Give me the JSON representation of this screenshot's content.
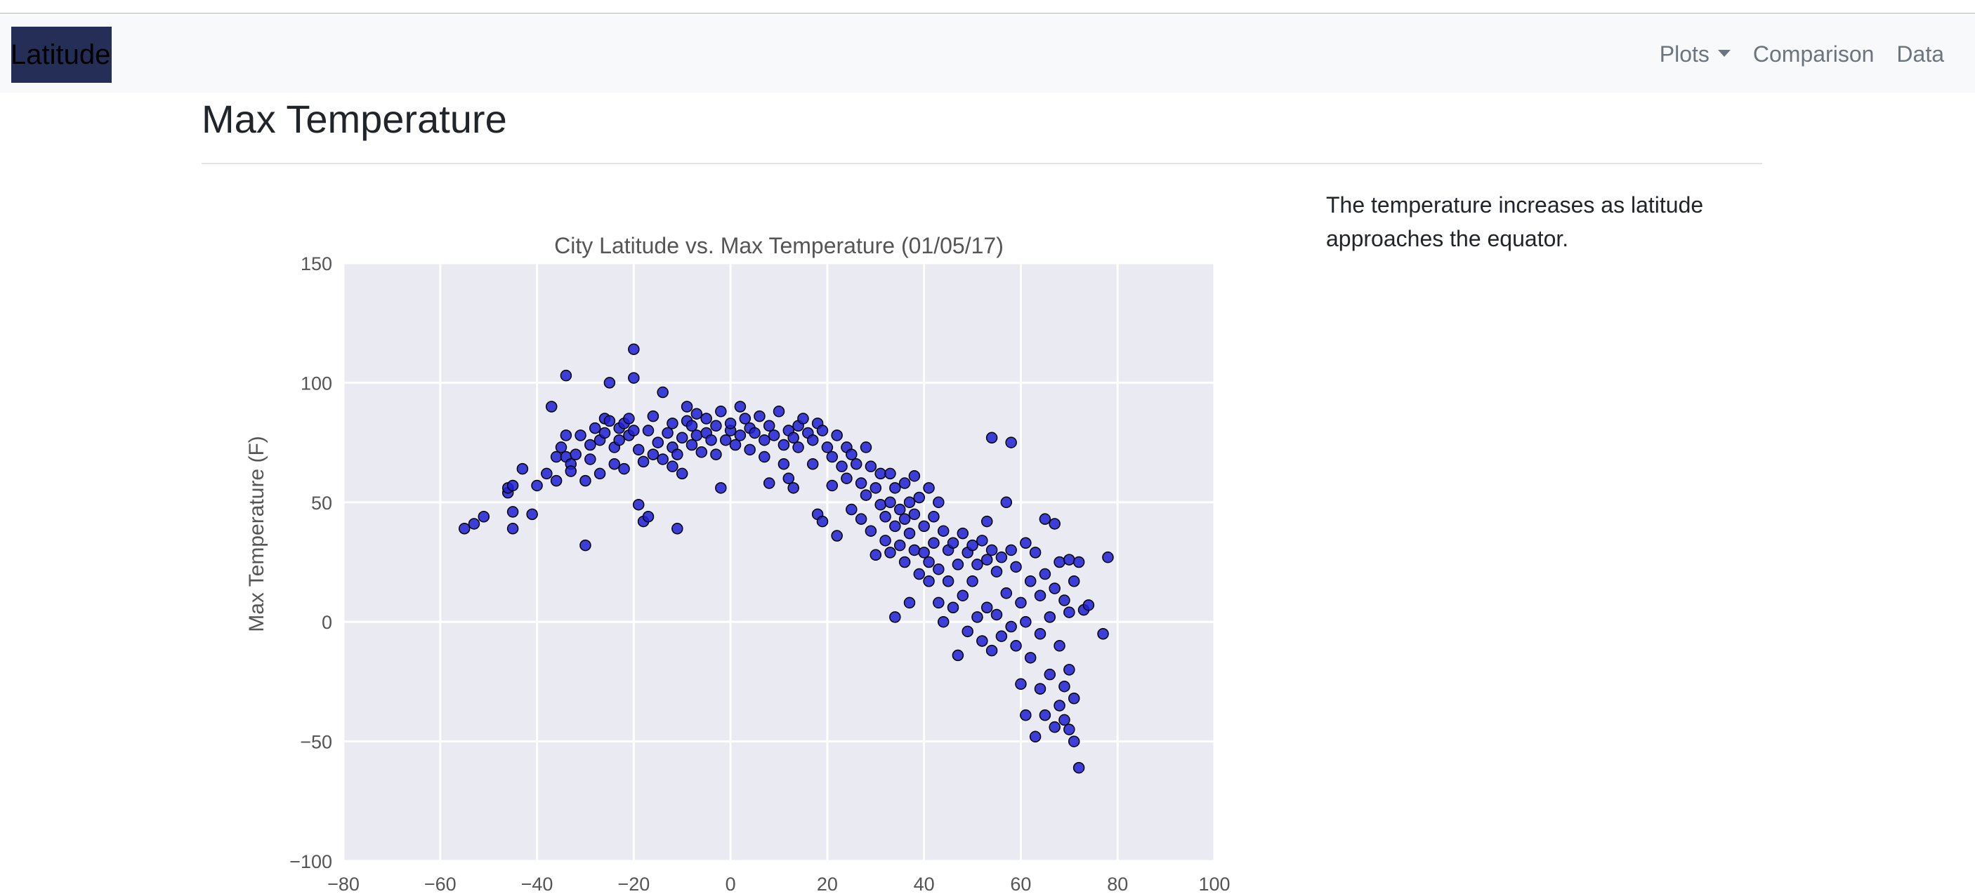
{
  "navbar": {
    "brand": "Latitude",
    "links": [
      {
        "label": "Plots",
        "dropdown": true
      },
      {
        "label": "Comparison",
        "dropdown": false
      },
      {
        "label": "Data",
        "dropdown": false
      }
    ]
  },
  "page": {
    "title": "Max Temperature",
    "description": "The temperature increases as latitude approaches the equator."
  },
  "colors": {
    "point_fill": "#1f1fd6",
    "plot_background": "#eaeaf2",
    "grid": "#ffffff",
    "brand_background": "#252e57"
  },
  "chart_data": {
    "type": "scatter",
    "title": "City Latitude vs. Max Temperature (01/05/17)",
    "xlabel": "",
    "ylabel": "Max Temperature (F)",
    "xlim": [
      -80,
      100
    ],
    "ylim": [
      -100,
      150
    ],
    "xticks": [
      -80,
      -60,
      -40,
      -20,
      0,
      20,
      40,
      60,
      80,
      100
    ],
    "yticks": [
      -100,
      -50,
      0,
      50,
      100,
      150
    ],
    "grid": true,
    "legend": "none",
    "points": [
      [
        -55,
        39
      ],
      [
        -53,
        41
      ],
      [
        -51,
        44
      ],
      [
        -46,
        54
      ],
      [
        -46,
        56
      ],
      [
        -45,
        57
      ],
      [
        -45,
        46
      ],
      [
        -45,
        39
      ],
      [
        -43,
        64
      ],
      [
        -41,
        45
      ],
      [
        -40,
        57
      ],
      [
        -38,
        62
      ],
      [
        -37,
        90
      ],
      [
        -36,
        69
      ],
      [
        -36,
        59
      ],
      [
        -35,
        73
      ],
      [
        -34,
        78
      ],
      [
        -34,
        103
      ],
      [
        -34,
        69
      ],
      [
        -33,
        66
      ],
      [
        -33,
        63
      ],
      [
        -32,
        70
      ],
      [
        -31,
        78
      ],
      [
        -30,
        32
      ],
      [
        -30,
        59
      ],
      [
        -29,
        74
      ],
      [
        -29,
        68
      ],
      [
        -28,
        81
      ],
      [
        -27,
        76
      ],
      [
        -27,
        62
      ],
      [
        -26,
        79
      ],
      [
        -26,
        85
      ],
      [
        -25,
        84
      ],
      [
        -25,
        100
      ],
      [
        -24,
        73
      ],
      [
        -24,
        66
      ],
      [
        -23,
        81
      ],
      [
        -23,
        76
      ],
      [
        -22,
        83
      ],
      [
        -22,
        64
      ],
      [
        -21,
        78
      ],
      [
        -21,
        85
      ],
      [
        -20,
        114
      ],
      [
        -20,
        102
      ],
      [
        -20,
        80
      ],
      [
        -19,
        72
      ],
      [
        -19,
        49
      ],
      [
        -18,
        42
      ],
      [
        -18,
        67
      ],
      [
        -17,
        44
      ],
      [
        -17,
        80
      ],
      [
        -16,
        86
      ],
      [
        -16,
        70
      ],
      [
        -15,
        75
      ],
      [
        -14,
        96
      ],
      [
        -14,
        68
      ],
      [
        -13,
        79
      ],
      [
        -12,
        83
      ],
      [
        -12,
        73
      ],
      [
        -12,
        65
      ],
      [
        -11,
        39
      ],
      [
        -11,
        70
      ],
      [
        -10,
        77
      ],
      [
        -10,
        62
      ],
      [
        -9,
        84
      ],
      [
        -9,
        90
      ],
      [
        -8,
        74
      ],
      [
        -8,
        82
      ],
      [
        -7,
        87
      ],
      [
        -7,
        78
      ],
      [
        -6,
        71
      ],
      [
        -5,
        85
      ],
      [
        -5,
        79
      ],
      [
        -4,
        76
      ],
      [
        -3,
        82
      ],
      [
        -3,
        70
      ],
      [
        -2,
        56
      ],
      [
        -2,
        88
      ],
      [
        -1,
        76
      ],
      [
        0,
        80
      ],
      [
        0,
        83
      ],
      [
        1,
        74
      ],
      [
        2,
        90
      ],
      [
        2,
        78
      ],
      [
        3,
        85
      ],
      [
        4,
        81
      ],
      [
        4,
        72
      ],
      [
        5,
        79
      ],
      [
        6,
        86
      ],
      [
        7,
        76
      ],
      [
        7,
        69
      ],
      [
        8,
        82
      ],
      [
        8,
        58
      ],
      [
        9,
        78
      ],
      [
        10,
        88
      ],
      [
        11,
        66
      ],
      [
        11,
        74
      ],
      [
        12,
        80
      ],
      [
        12,
        60
      ],
      [
        13,
        77
      ],
      [
        13,
        56
      ],
      [
        14,
        82
      ],
      [
        14,
        73
      ],
      [
        15,
        85
      ],
      [
        16,
        79
      ],
      [
        17,
        76
      ],
      [
        17,
        66
      ],
      [
        18,
        83
      ],
      [
        18,
        45
      ],
      [
        19,
        80
      ],
      [
        19,
        42
      ],
      [
        20,
        73
      ],
      [
        21,
        69
      ],
      [
        21,
        57
      ],
      [
        22,
        78
      ],
      [
        22,
        36
      ],
      [
        23,
        65
      ],
      [
        24,
        73
      ],
      [
        24,
        60
      ],
      [
        25,
        70
      ],
      [
        25,
        47
      ],
      [
        26,
        66
      ],
      [
        27,
        43
      ],
      [
        27,
        58
      ],
      [
        28,
        73
      ],
      [
        28,
        53
      ],
      [
        29,
        65
      ],
      [
        29,
        38
      ],
      [
        30,
        56
      ],
      [
        30,
        28
      ],
      [
        31,
        62
      ],
      [
        31,
        49
      ],
      [
        32,
        44
      ],
      [
        32,
        34
      ],
      [
        33,
        62
      ],
      [
        33,
        50
      ],
      [
        33,
        29
      ],
      [
        34,
        56
      ],
      [
        34,
        40
      ],
      [
        34,
        2
      ],
      [
        35,
        47
      ],
      [
        35,
        32
      ],
      [
        36,
        58
      ],
      [
        36,
        43
      ],
      [
        36,
        25
      ],
      [
        37,
        50
      ],
      [
        37,
        37
      ],
      [
        37,
        8
      ],
      [
        38,
        61
      ],
      [
        38,
        45
      ],
      [
        38,
        30
      ],
      [
        39,
        52
      ],
      [
        39,
        20
      ],
      [
        40,
        40
      ],
      [
        40,
        29
      ],
      [
        41,
        56
      ],
      [
        41,
        25
      ],
      [
        41,
        17
      ],
      [
        42,
        44
      ],
      [
        42,
        33
      ],
      [
        43,
        50
      ],
      [
        43,
        22
      ],
      [
        43,
        8
      ],
      [
        44,
        38
      ],
      [
        44,
        0
      ],
      [
        45,
        30
      ],
      [
        45,
        17
      ],
      [
        46,
        33
      ],
      [
        46,
        6
      ],
      [
        47,
        24
      ],
      [
        47,
        -14
      ],
      [
        48,
        37
      ],
      [
        48,
        11
      ],
      [
        49,
        29
      ],
      [
        49,
        -4
      ],
      [
        50,
        32
      ],
      [
        50,
        17
      ],
      [
        51,
        24
      ],
      [
        51,
        2
      ],
      [
        52,
        34
      ],
      [
        52,
        -8
      ],
      [
        53,
        42
      ],
      [
        53,
        26
      ],
      [
        53,
        6
      ],
      [
        54,
        77
      ],
      [
        54,
        30
      ],
      [
        54,
        -12
      ],
      [
        55,
        21
      ],
      [
        55,
        3
      ],
      [
        56,
        27
      ],
      [
        56,
        -6
      ],
      [
        57,
        50
      ],
      [
        57,
        12
      ],
      [
        58,
        75
      ],
      [
        58,
        30
      ],
      [
        58,
        -2
      ],
      [
        59,
        23
      ],
      [
        59,
        -10
      ],
      [
        60,
        8
      ],
      [
        60,
        -26
      ],
      [
        61,
        33
      ],
      [
        61,
        0
      ],
      [
        61,
        -39
      ],
      [
        62,
        17
      ],
      [
        62,
        -15
      ],
      [
        63,
        29
      ],
      [
        63,
        -48
      ],
      [
        64,
        11
      ],
      [
        64,
        -5
      ],
      [
        64,
        -28
      ],
      [
        65,
        43
      ],
      [
        65,
        20
      ],
      [
        65,
        -39
      ],
      [
        66,
        2
      ],
      [
        66,
        -22
      ],
      [
        67,
        41
      ],
      [
        67,
        14
      ],
      [
        67,
        -44
      ],
      [
        68,
        25
      ],
      [
        68,
        -10
      ],
      [
        68,
        -35
      ],
      [
        69,
        9
      ],
      [
        69,
        -27
      ],
      [
        69,
        -41
      ],
      [
        70,
        26
      ],
      [
        70,
        4
      ],
      [
        70,
        -20
      ],
      [
        70,
        -45
      ],
      [
        71,
        17
      ],
      [
        71,
        -32
      ],
      [
        71,
        -50
      ],
      [
        72,
        25
      ],
      [
        72,
        -61
      ],
      [
        73,
        5
      ],
      [
        74,
        7
      ],
      [
        77,
        -5
      ],
      [
        78,
        27
      ]
    ]
  }
}
